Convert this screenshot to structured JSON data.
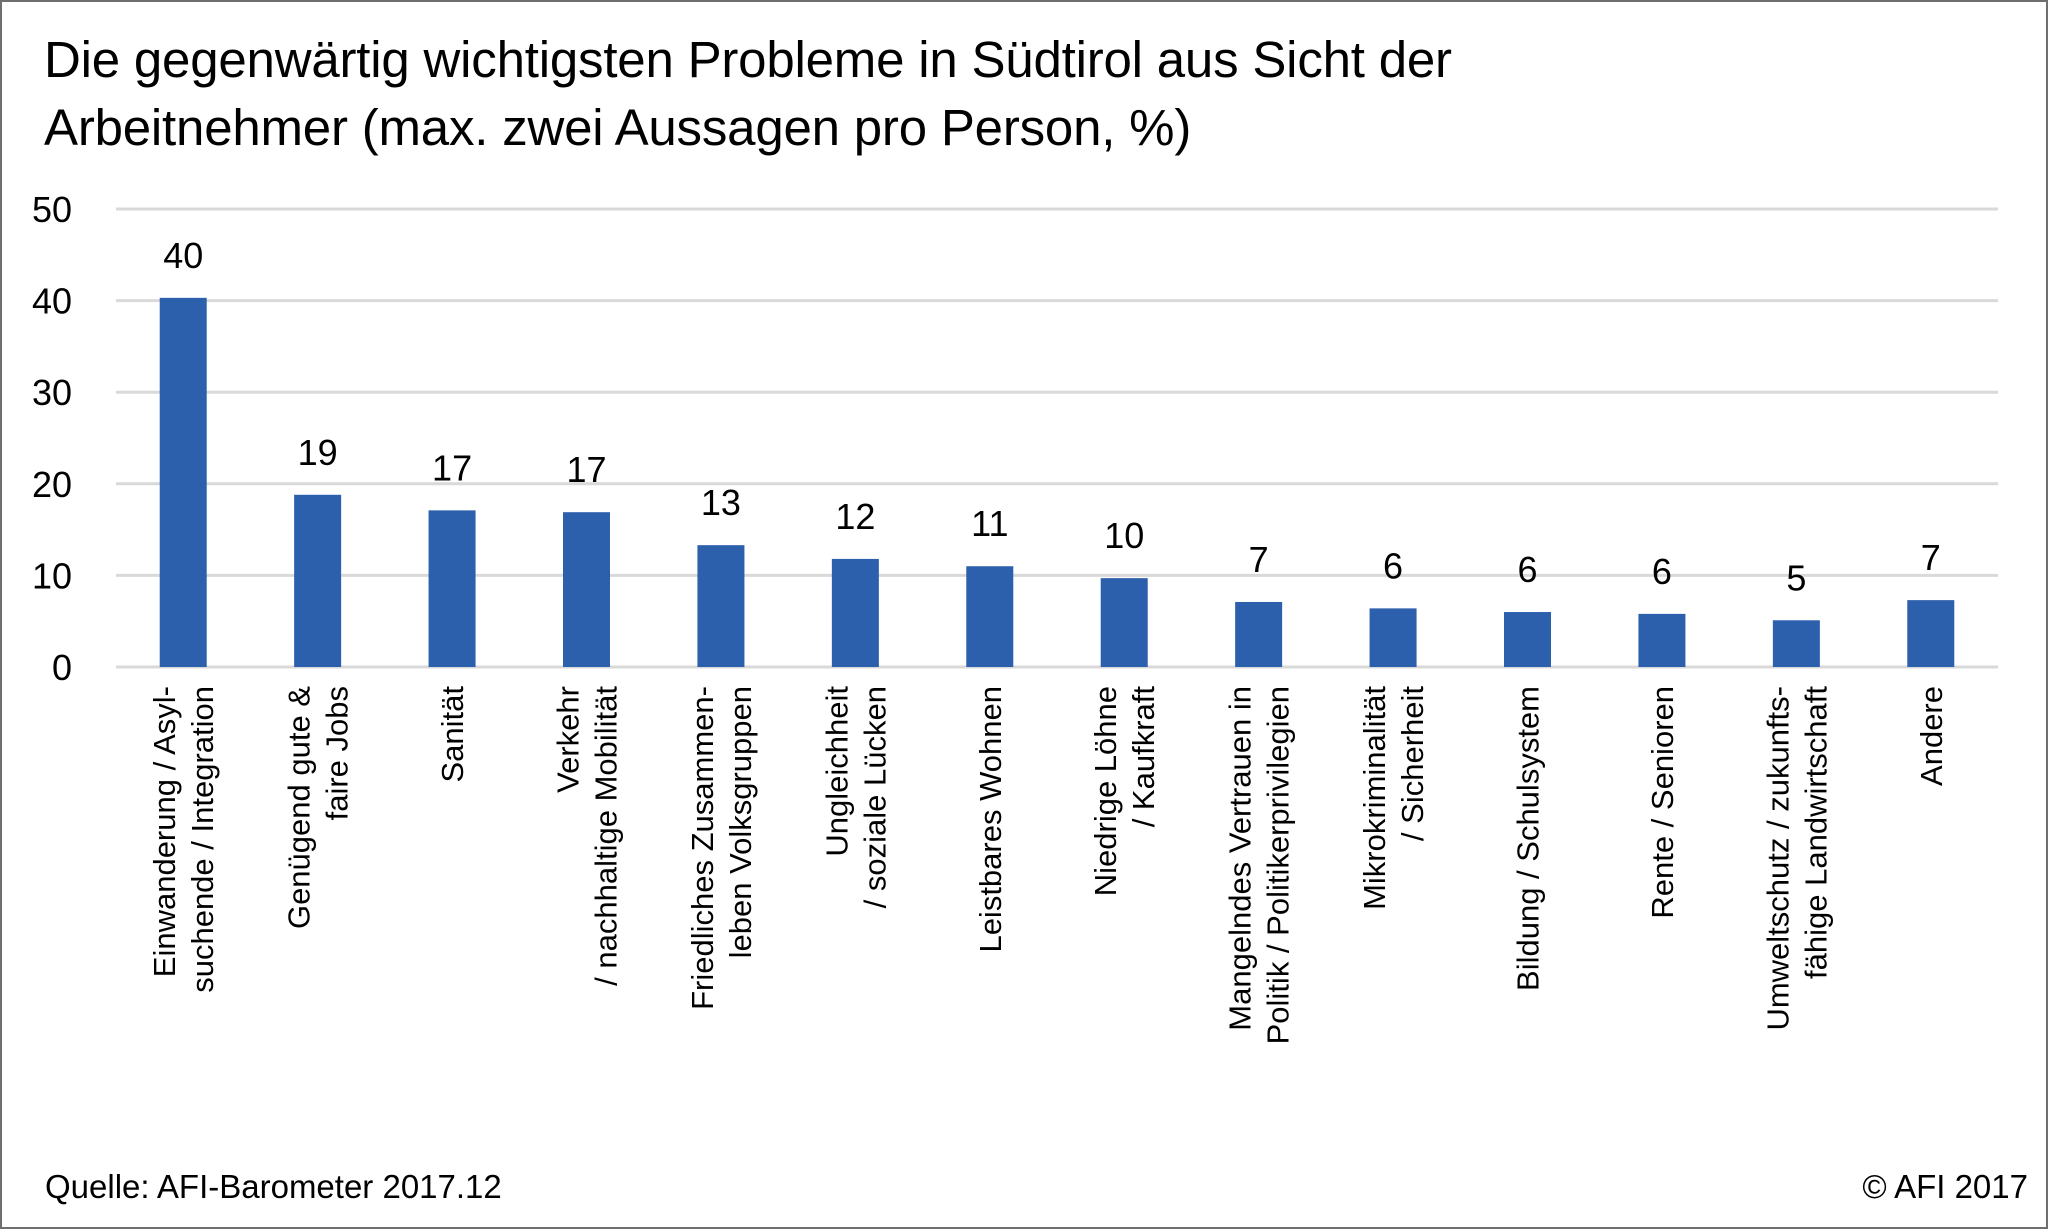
{
  "title": "Die gegenwärtig wichtigsten Probleme in Südtirol aus Sicht der\nArbeitnehmer (max. zwei Aussagen pro Person, %)",
  "footer": {
    "source": "Quelle: AFI-Barometer 2017.12",
    "copyright": "© AFI 2017"
  },
  "colors": {
    "bar": "#2c5fac",
    "grid": "#d9d9d9",
    "text": "#000000",
    "frame": "#6f6f6f"
  },
  "chart_data": {
    "type": "bar",
    "title": "Die gegenwärtig wichtigsten Probleme in Südtirol aus Sicht der Arbeitnehmer (max. zwei Aussagen pro Person, %)",
    "categories": [
      "Einwanderung / Asyl-\nsuchende / Integration",
      "Genügend gute &\nfaire Jobs",
      "Sanität",
      "Verkehr\n/ nachhaltige Mobilität",
      "Friedliches Zusammen-\nleben Volksgruppen",
      "Ungleichheit\n/ soziale Lücken",
      "Leistbares Wohnen",
      "Niedrige Löhne\n/ Kaufkraft",
      "Mangelndes Vertrauen in\nPolitik / Politikerprivilegien",
      "Mikrokriminalität\n/ Sicherheit",
      "Bildung / Schulsystem",
      "Rente / Senioren",
      "Umweltschutz / zukunfts-\nfähige Landwirtschaft",
      "Andere"
    ],
    "values": [
      40.3,
      18.8,
      17.1,
      16.9,
      13.3,
      11.8,
      11.0,
      9.7,
      7.1,
      6.4,
      6.0,
      5.8,
      5.1,
      7.3
    ],
    "data_labels": [
      "40",
      "19",
      "17",
      "17",
      "13",
      "12",
      "11",
      "10",
      "7",
      "6",
      "6",
      "6",
      "5",
      "7"
    ],
    "y_ticks": [
      0,
      10,
      20,
      30,
      40,
      50
    ],
    "ylim": [
      0,
      50
    ],
    "grid": true,
    "legend": "none",
    "xlabel": "",
    "ylabel": ""
  }
}
